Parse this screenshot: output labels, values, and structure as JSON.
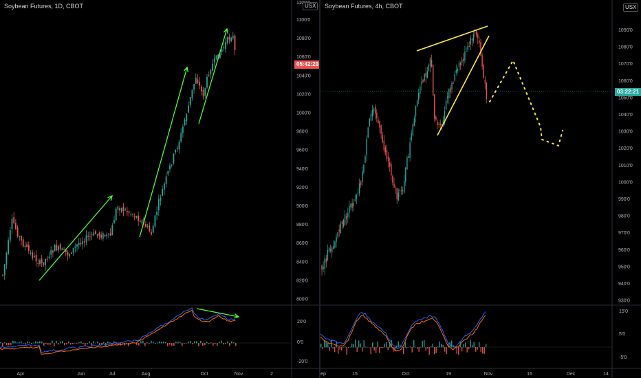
{
  "left": {
    "title": "Soybean Futures, 1D, CBOT",
    "currency": "USX",
    "timer": "05:42:20",
    "timer_color": "#ef5350",
    "top_partial_label": "1100'0",
    "price_labels": [
      "1100'0",
      "1080'0",
      "1060'0",
      "1040'0",
      "1020'0",
      "1000'0",
      "980'0",
      "960'0",
      "940'0",
      "920'0",
      "900'0",
      "880'0",
      "860'0",
      "840'0",
      "820'0",
      "800'0"
    ],
    "osc_labels": [
      "20'0",
      "0'0",
      "-20'0"
    ],
    "date_labels": [
      "Apr",
      "Jun",
      "Jul",
      "Aug",
      "Oct",
      "Nov",
      "2"
    ]
  },
  "right": {
    "title": "Soybean Futures, 4h, CBOT",
    "currency": "USX",
    "timer": "03:22:21",
    "timer_color": "#26a69a",
    "price_labels": [
      "1090'0",
      "1080'0",
      "1070'0",
      "1060'0",
      "1050'0",
      "1040'0",
      "1030'0",
      "1020'0",
      "1010'0",
      "1000'0",
      "990'0",
      "980'0",
      "970'0",
      "960'0",
      "950'0",
      "940'0",
      "930'0"
    ],
    "osc_labels": [
      "15'0",
      "5'0",
      "-5'0"
    ],
    "date_labels": [
      "ep",
      "15",
      "Oct",
      "19",
      "Nov",
      "16",
      "Dec",
      "14"
    ]
  },
  "colors": {
    "up": "#26a69a",
    "down": "#ef5350",
    "arrow": "#4cff3a",
    "trendline": "#ffeb3b",
    "macd": "#2962ff",
    "signal": "#ff6d00"
  }
}
